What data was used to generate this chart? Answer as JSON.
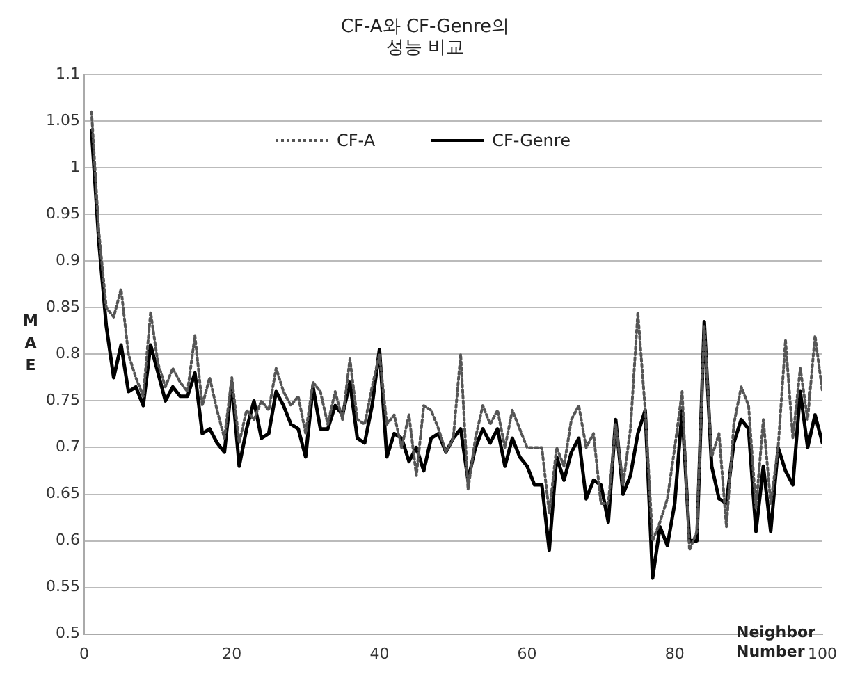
{
  "chart_data": {
    "type": "line",
    "title": "CF-A와 CF-Genre의 성능 비교",
    "xlabel": "Neighbor Number",
    "ylabel": "MAE",
    "x": [
      1,
      2,
      3,
      4,
      5,
      6,
      7,
      8,
      9,
      10,
      11,
      12,
      13,
      14,
      15,
      16,
      17,
      18,
      19,
      20,
      21,
      22,
      23,
      24,
      25,
      26,
      27,
      28,
      29,
      30,
      31,
      32,
      33,
      34,
      35,
      36,
      37,
      38,
      39,
      40,
      41,
      42,
      43,
      44,
      45,
      46,
      47,
      48,
      49,
      50,
      51,
      52,
      53,
      54,
      55,
      56,
      57,
      58,
      59,
      60,
      61,
      62,
      63,
      64,
      65,
      66,
      67,
      68,
      69,
      70,
      71,
      72,
      73,
      74,
      75,
      76,
      77,
      78,
      79,
      80,
      81,
      82,
      83,
      84,
      85,
      86,
      87,
      88,
      89,
      90,
      91,
      92,
      93,
      94,
      95,
      96,
      97,
      98,
      99,
      100
    ],
    "series": [
      {
        "name": "CF-A",
        "color": "#555555",
        "line_style": "dotted",
        "values": [
          1.06,
          0.93,
          0.85,
          0.84,
          0.87,
          0.8,
          0.775,
          0.755,
          0.845,
          0.79,
          0.765,
          0.785,
          0.77,
          0.76,
          0.82,
          0.745,
          0.775,
          0.74,
          0.71,
          0.775,
          0.705,
          0.74,
          0.73,
          0.75,
          0.74,
          0.785,
          0.76,
          0.745,
          0.755,
          0.715,
          0.77,
          0.76,
          0.725,
          0.76,
          0.73,
          0.795,
          0.73,
          0.725,
          0.765,
          0.8,
          0.725,
          0.735,
          0.7,
          0.735,
          0.67,
          0.745,
          0.74,
          0.72,
          0.695,
          0.71,
          0.8,
          0.655,
          0.71,
          0.745,
          0.725,
          0.74,
          0.7,
          0.74,
          0.72,
          0.7,
          0.7,
          0.7,
          0.63,
          0.7,
          0.68,
          0.73,
          0.745,
          0.7,
          0.715,
          0.64,
          0.64,
          0.725,
          0.66,
          0.72,
          0.845,
          0.74,
          0.6,
          0.62,
          0.645,
          0.7,
          0.76,
          0.59,
          0.61,
          0.83,
          0.69,
          0.715,
          0.615,
          0.725,
          0.765,
          0.745,
          0.635,
          0.73,
          0.64,
          0.7,
          0.815,
          0.71,
          0.785,
          0.73,
          0.82,
          0.76
        ]
      },
      {
        "name": "CF-Genre",
        "color": "#000000",
        "line_style": "solid",
        "values": [
          1.04,
          0.92,
          0.83,
          0.775,
          0.81,
          0.76,
          0.765,
          0.745,
          0.81,
          0.78,
          0.75,
          0.765,
          0.755,
          0.755,
          0.78,
          0.715,
          0.72,
          0.705,
          0.695,
          0.77,
          0.68,
          0.72,
          0.75,
          0.71,
          0.715,
          0.76,
          0.745,
          0.725,
          0.72,
          0.69,
          0.765,
          0.72,
          0.72,
          0.745,
          0.735,
          0.77,
          0.71,
          0.705,
          0.745,
          0.805,
          0.69,
          0.715,
          0.71,
          0.685,
          0.7,
          0.675,
          0.71,
          0.715,
          0.695,
          0.71,
          0.72,
          0.665,
          0.7,
          0.72,
          0.705,
          0.72,
          0.68,
          0.71,
          0.69,
          0.68,
          0.66,
          0.66,
          0.59,
          0.69,
          0.665,
          0.695,
          0.71,
          0.645,
          0.665,
          0.66,
          0.62,
          0.73,
          0.65,
          0.67,
          0.715,
          0.74,
          0.56,
          0.615,
          0.595,
          0.64,
          0.74,
          0.6,
          0.6,
          0.835,
          0.68,
          0.645,
          0.64,
          0.705,
          0.73,
          0.72,
          0.61,
          0.68,
          0.61,
          0.7,
          0.675,
          0.66,
          0.76,
          0.7,
          0.735,
          0.705
        ]
      }
    ],
    "xlim": [
      0,
      100
    ],
    "xticks": [
      0,
      20,
      40,
      60,
      80,
      100
    ],
    "ylim": [
      0.5,
      1.1
    ],
    "yticks": [
      0.5,
      0.55,
      0.6,
      0.65,
      0.7,
      0.75,
      0.8,
      0.85,
      0.9,
      0.95,
      1,
      1.05,
      1.1
    ],
    "grid": "y",
    "legend": "top",
    "marker": "none"
  }
}
